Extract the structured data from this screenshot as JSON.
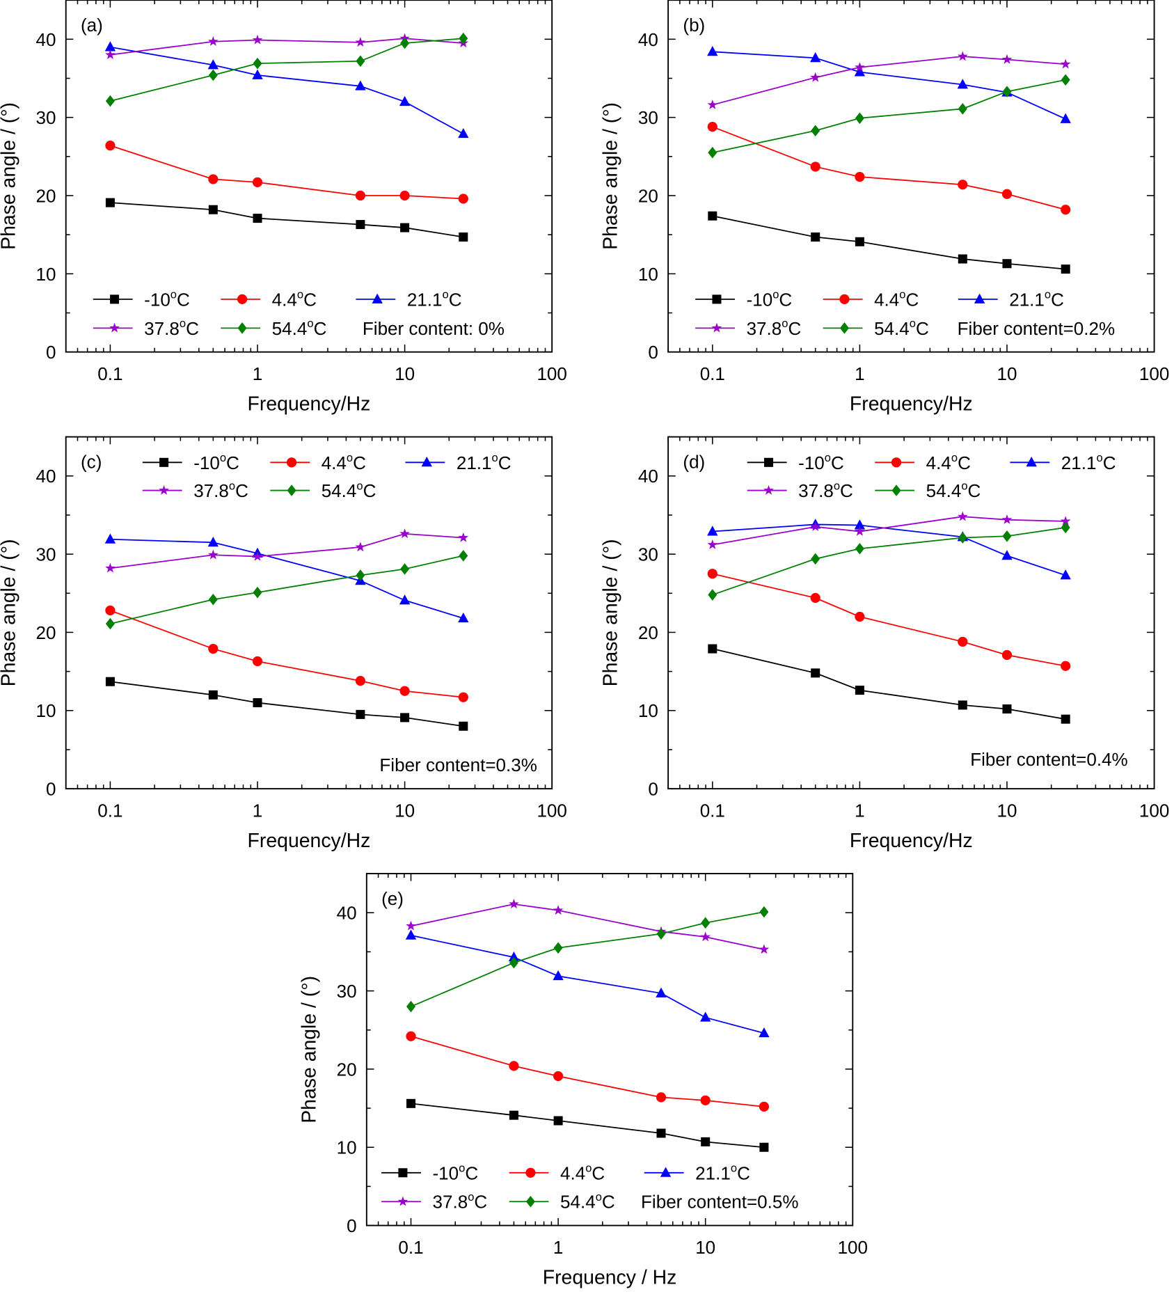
{
  "chart_data": [
    {
      "type": "line",
      "panel_label": "(a)",
      "xlabel": "Frequency/Hz",
      "ylabel": "Phase angle / (°)",
      "xscale": "log",
      "xlim": [
        0.05,
        100
      ],
      "ylim": [
        0,
        45
      ],
      "xticks": [
        "0.1",
        "1",
        "10",
        "100"
      ],
      "yticks": [
        "0",
        "10",
        "20",
        "30",
        "40"
      ],
      "grid": false,
      "legend_placement": "bottom",
      "annotation": "Fiber content: 0%",
      "x": [
        0.1,
        0.5,
        1,
        5,
        10,
        25
      ],
      "series": [
        {
          "name": "-10oC",
          "values": [
            19.1,
            18.2,
            17.1,
            16.3,
            15.9,
            14.7
          ]
        },
        {
          "name": "4.4oC",
          "values": [
            26.4,
            22.1,
            21.7,
            20.0,
            20.0,
            19.6
          ]
        },
        {
          "name": "21.1oC",
          "values": [
            39.0,
            36.7,
            35.4,
            34.0,
            32.0,
            27.9
          ]
        },
        {
          "name": "37.8oC",
          "values": [
            38.0,
            39.7,
            39.9,
            39.6,
            40.1,
            39.5
          ]
        },
        {
          "name": "54.4oC",
          "values": [
            32.1,
            35.4,
            36.9,
            37.2,
            39.5,
            40.1
          ]
        }
      ]
    },
    {
      "type": "line",
      "panel_label": "(b)",
      "xlabel": "Frequency/Hz",
      "ylabel": "Phase angle / (°)",
      "xscale": "log",
      "xlim": [
        0.05,
        100
      ],
      "ylim": [
        0,
        45
      ],
      "xticks": [
        "0.1",
        "1",
        "10",
        "100"
      ],
      "yticks": [
        "0",
        "10",
        "20",
        "30",
        "40"
      ],
      "grid": false,
      "legend_placement": "bottom",
      "annotation": "Fiber content=0.2%",
      "x": [
        0.1,
        0.5,
        1,
        5,
        10,
        25
      ],
      "series": [
        {
          "name": "-10oC",
          "values": [
            17.4,
            14.7,
            14.1,
            11.9,
            11.3,
            10.6
          ]
        },
        {
          "name": "4.4oC",
          "values": [
            28.8,
            23.7,
            22.4,
            21.4,
            20.2,
            18.2
          ]
        },
        {
          "name": "21.1oC",
          "values": [
            38.4,
            37.6,
            35.8,
            34.2,
            33.2,
            29.8
          ]
        },
        {
          "name": "37.8oC",
          "values": [
            31.6,
            35.1,
            36.4,
            37.8,
            37.4,
            36.8
          ]
        },
        {
          "name": "54.4oC",
          "values": [
            25.5,
            28.3,
            29.9,
            31.1,
            33.3,
            34.8
          ]
        }
      ]
    },
    {
      "type": "line",
      "panel_label": "(c)",
      "xlabel": "Frequency/Hz",
      "ylabel": "Phase angle / (°)",
      "xscale": "log",
      "xlim": [
        0.05,
        100
      ],
      "ylim": [
        0,
        45
      ],
      "xticks": [
        "0.1",
        "1",
        "10",
        "100"
      ],
      "yticks": [
        "0",
        "10",
        "20",
        "30",
        "40"
      ],
      "grid": false,
      "legend_placement": "top",
      "annotation": "Fiber content=0.3%",
      "x": [
        0.1,
        0.5,
        1,
        5,
        10,
        25
      ],
      "series": [
        {
          "name": "-10oC",
          "values": [
            13.7,
            12.0,
            11.0,
            9.5,
            9.1,
            8.0
          ]
        },
        {
          "name": "4.4oC",
          "values": [
            22.8,
            17.9,
            16.3,
            13.8,
            12.5,
            11.7
          ]
        },
        {
          "name": "21.1oC",
          "values": [
            31.9,
            31.5,
            30.1,
            26.6,
            24.1,
            21.8
          ]
        },
        {
          "name": "37.8oC",
          "values": [
            28.2,
            29.9,
            29.7,
            30.9,
            32.6,
            32.1
          ]
        },
        {
          "name": "54.4oC",
          "values": [
            21.1,
            24.2,
            25.1,
            27.3,
            28.1,
            29.8
          ]
        }
      ]
    },
    {
      "type": "line",
      "panel_label": "(d)",
      "xlabel": "Frequency/Hz",
      "ylabel": "Phase angle / (°)",
      "xscale": "log",
      "xlim": [
        0.05,
        100
      ],
      "ylim": [
        0,
        45
      ],
      "xticks": [
        "0.1",
        "1",
        "10",
        "100"
      ],
      "yticks": [
        "0",
        "10",
        "20",
        "30",
        "40"
      ],
      "grid": false,
      "legend_placement": "top",
      "annotation": "Fiber content=0.4%",
      "x": [
        0.1,
        0.5,
        1,
        5,
        10,
        25
      ],
      "series": [
        {
          "name": "-10oC",
          "values": [
            17.9,
            14.8,
            12.6,
            10.7,
            10.2,
            8.9
          ]
        },
        {
          "name": "4.4oC",
          "values": [
            27.5,
            24.4,
            22.0,
            18.8,
            17.1,
            15.7
          ]
        },
        {
          "name": "21.1oC",
          "values": [
            32.9,
            33.8,
            33.7,
            32.2,
            29.8,
            27.3
          ]
        },
        {
          "name": "37.8oC",
          "values": [
            31.2,
            33.5,
            32.9,
            34.8,
            34.4,
            34.2
          ]
        },
        {
          "name": "54.4oC",
          "values": [
            24.8,
            29.4,
            30.7,
            32.1,
            32.3,
            33.4
          ]
        }
      ]
    },
    {
      "type": "line",
      "panel_label": "(e)",
      "xlabel": "Frequency / Hz",
      "ylabel": "Phase angle / (°)",
      "xscale": "log",
      "xlim": [
        0.05,
        100
      ],
      "ylim": [
        0,
        45
      ],
      "xticks": [
        "0.1",
        "1",
        "10",
        "100"
      ],
      "yticks": [
        "0",
        "10",
        "20",
        "30",
        "40"
      ],
      "grid": false,
      "legend_placement": "bottom",
      "annotation": "Fiber content=0.5%",
      "x": [
        0.1,
        0.5,
        1,
        5,
        10,
        25
      ],
      "series": [
        {
          "name": "-10oC",
          "values": [
            15.6,
            14.1,
            13.4,
            11.8,
            10.7,
            10.0
          ]
        },
        {
          "name": "4.4oC",
          "values": [
            24.2,
            20.4,
            19.1,
            16.4,
            16.0,
            15.2
          ]
        },
        {
          "name": "21.1oC",
          "values": [
            37.1,
            34.3,
            31.9,
            29.7,
            26.6,
            24.6
          ]
        },
        {
          "name": "37.8oC",
          "values": [
            38.3,
            41.1,
            40.3,
            37.6,
            36.9,
            35.3
          ]
        },
        {
          "name": "54.4oC",
          "values": [
            28.0,
            33.6,
            35.5,
            37.3,
            38.7,
            40.1
          ]
        }
      ]
    }
  ],
  "series_style": [
    {
      "label_value": "-10",
      "label_sup": "o",
      "label_unit": "C",
      "color": "#000000",
      "marker": "square"
    },
    {
      "label_value": "4.4",
      "label_sup": "o",
      "label_unit": "C",
      "color": "#ff0000",
      "marker": "circle"
    },
    {
      "label_value": "21.1",
      "label_sup": "o",
      "label_unit": "C",
      "color": "#0000ff",
      "marker": "triangle-up"
    },
    {
      "label_value": "37.8",
      "label_sup": "o",
      "label_unit": "C",
      "color": "#9900cc",
      "marker": "star"
    },
    {
      "label_value": "54.4",
      "label_sup": "o",
      "label_unit": "C",
      "color": "#008000",
      "marker": "diamond"
    }
  ]
}
